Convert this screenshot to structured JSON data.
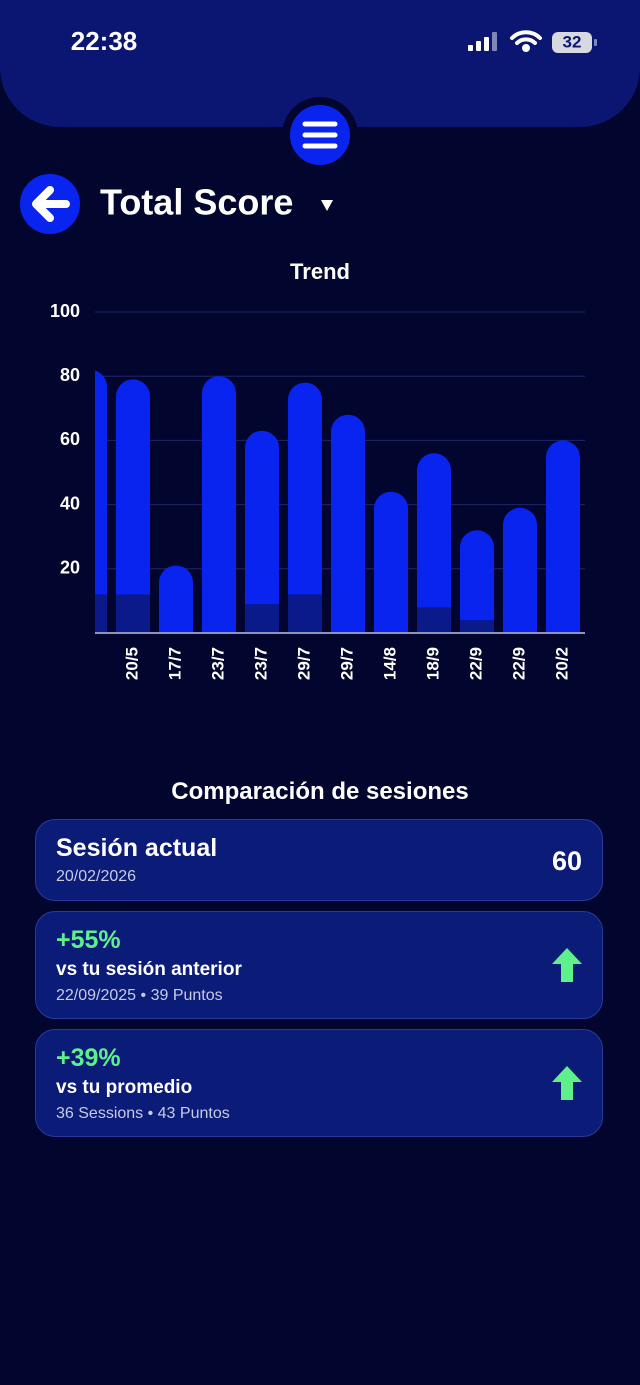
{
  "status_bar": {
    "time": "22:38",
    "battery": 32
  },
  "header": {
    "title": "Total Score"
  },
  "chart_data": {
    "type": "bar",
    "title": "Trend",
    "categories": [
      null,
      "20/5",
      "17/7",
      "23/7",
      "23/7",
      "29/7",
      "29/7",
      "14/8",
      "18/9",
      "22/9",
      "22/9",
      "20/2"
    ],
    "series": [
      {
        "color": "#0a24f0",
        "values": [
          82,
          79,
          21,
          80,
          63,
          78,
          68,
          44,
          56,
          32,
          39,
          60
        ]
      },
      {
        "color": "#0b1a8a",
        "values": [
          12,
          12,
          null,
          null,
          9,
          12,
          null,
          null,
          8,
          4,
          null,
          null
        ]
      }
    ],
    "ylim": [
      0,
      100
    ],
    "yticks": [
      20,
      40,
      60,
      80,
      100
    ],
    "grid": true
  },
  "comparison": {
    "title": "Comparación de sesiones",
    "cards": [
      {
        "label": "Sesión actual",
        "date": "20/02/2026",
        "score": 60
      },
      {
        "change": "+55%",
        "label": "vs tu sesión anterior",
        "meta": "22/09/2025 • 39 Puntos"
      },
      {
        "change": "+39%",
        "label": "vs tu promedio",
        "meta": "36 Sessions • 43 Puntos"
      }
    ]
  }
}
